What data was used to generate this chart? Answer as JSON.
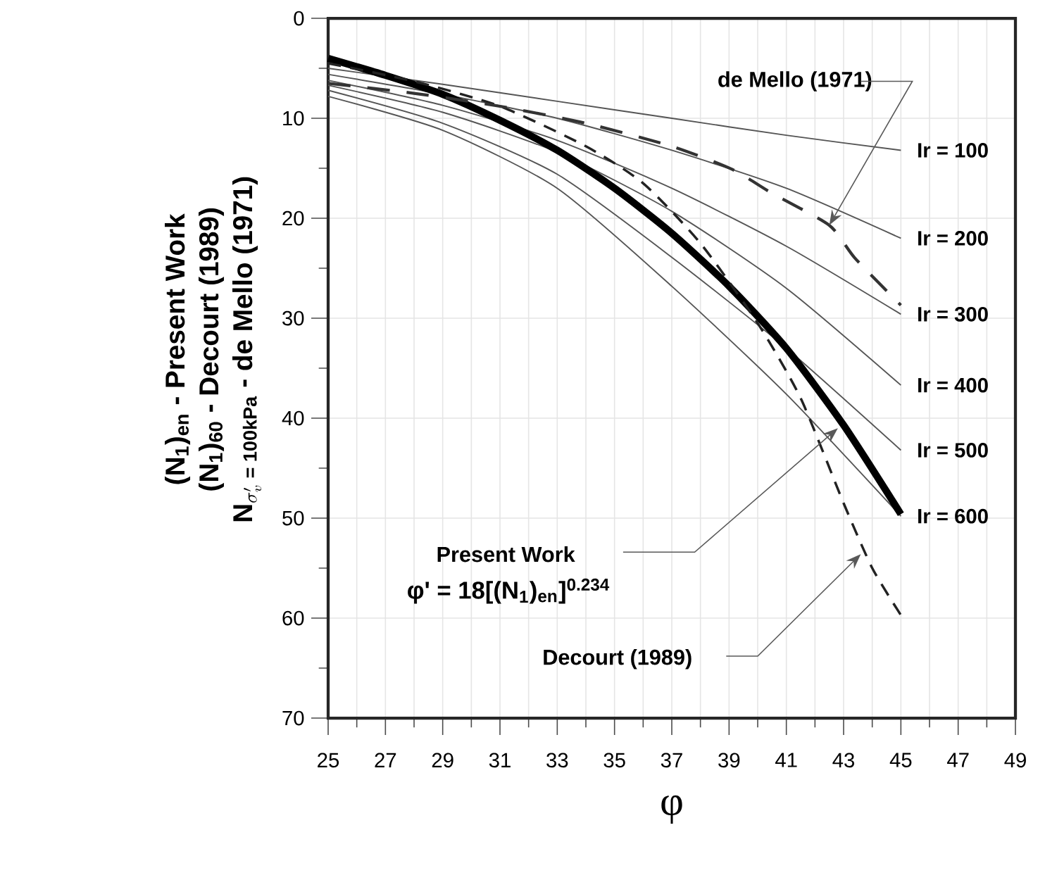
{
  "chart_data": {
    "type": "line",
    "xlabel": "φ",
    "ylabel": [
      "(N$_{1}$)$_{en}$ - Present Work",
      "(N$_{1}$)$_{60}$ - Decourt (1989)",
      "\\textbf{N}_{\\sigma'_{v}\\textbf{ = 100kPa}}\\textbf{ - de Mello (1971)}"
    ],
    "xlim": [
      25,
      49
    ],
    "xticks": [
      25,
      {
        "value": 26,
        "label": null
      },
      27,
      {
        "value": 28,
        "label": null
      },
      29,
      {
        "value": 30,
        "label": null
      },
      31,
      {
        "value": 32,
        "label": null
      },
      33,
      {
        "value": 34,
        "label": null
      },
      35,
      {
        "value": 36,
        "label": null
      },
      37,
      {
        "value": 38,
        "label": null
      },
      39,
      {
        "value": 40,
        "label": null
      },
      41,
      {
        "value": 42,
        "label": null
      },
      43,
      {
        "value": 44,
        "label": null
      },
      45,
      {
        "value": 46,
        "label": null
      },
      47,
      {
        "value": 48,
        "label": null
      },
      49
    ],
    "ylim": [
      70,
      0
    ],
    "yticks": [
      0,
      {
        "value": 5,
        "label": null
      },
      10,
      {
        "value": 15,
        "label": null
      },
      20,
      {
        "value": 25,
        "label": null
      },
      30,
      {
        "value": 35,
        "label": null
      },
      40,
      {
        "value": 45,
        "label": null
      },
      50,
      {
        "value": 55,
        "label": null
      },
      60,
      {
        "value": 65,
        "label": null
      },
      70
    ],
    "grid": true,
    "line_style": "solid",
    "x": [
      25,
      29,
      33,
      37,
      41,
      45
    ],
    "series": [
      {
        "name": "Ir = 100",
        "color": "#555555",
        "values": [
          5.0,
          6.6,
          8.3,
          10.0,
          11.7,
          13.2
        ]
      },
      {
        "name": "Ir = 200",
        "color": "#555555",
        "values": [
          5.6,
          7.6,
          10.0,
          13.2,
          17.0,
          22.0
        ]
      },
      {
        "name": "Ir = 300",
        "color": "#555555",
        "values": [
          6.2,
          8.7,
          12.2,
          17.0,
          22.8,
          29.6
        ]
      },
      {
        "name": "Ir = 400",
        "color": "#555555",
        "values": [
          6.7,
          9.4,
          13.4,
          19.3,
          27.0,
          36.7
        ]
      },
      {
        "name": "Ir = 500",
        "color": "#555555",
        "values": [
          7.2,
          10.5,
          15.6,
          23.9,
          33.0,
          43.2
        ]
      },
      {
        "name": "Ir = 600",
        "color": "#555555",
        "values": [
          7.8,
          11.2,
          17.0,
          26.8,
          37.6,
          49.8
        ]
      },
      {
        "color": "#000000",
        "x": [
          25,
          27,
          29,
          31,
          33,
          35,
          37,
          39,
          41,
          43,
          45
        ],
        "values": [
          4.0,
          5.7,
          7.6,
          10.2,
          13.2,
          17.0,
          21.5,
          26.8,
          33.0,
          40.7,
          49.6
        ]
      },
      {
        "color": "#222222",
        "line_style": "dashed",
        "x": [
          25,
          28,
          31,
          34,
          36,
          38,
          40,
          41.5,
          43,
          44,
          45
        ],
        "values": [
          4.5,
          6.3,
          8.8,
          12.8,
          16.5,
          22.5,
          30.5,
          38.0,
          48.5,
          55.0,
          59.7
        ]
      },
      {
        "color": "#333333",
        "line_style": "dashed",
        "x": [
          25,
          28,
          31,
          34,
          37,
          39.1,
          40.5,
          42.5,
          43.4,
          45
        ],
        "values": [
          6.5,
          7.5,
          8.8,
          10.5,
          12.8,
          15.1,
          17.5,
          20.7,
          24.0,
          28.7
        ]
      }
    ],
    "annotations": [
      {
        "text": "de Mello (1971)",
        "x": 42.5,
        "y": 20.7
      },
      "Present Work",
      "φ' = 18[(N$_{1}$)$_{en}$]$^{0.234}$",
      "Decourt (1989)"
    ]
  }
}
